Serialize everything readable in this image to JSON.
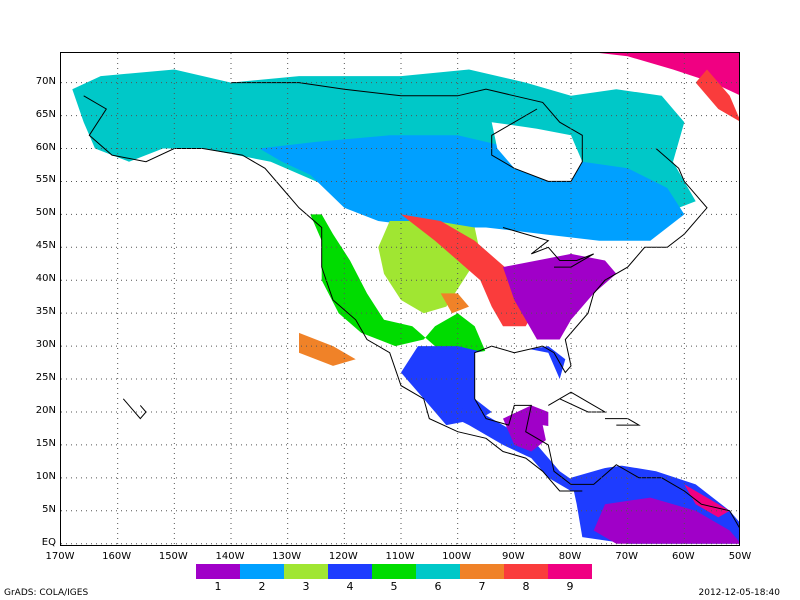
{
  "map": {
    "lat_labels": [
      "EQ",
      "5N",
      "10N",
      "15N",
      "20N",
      "25N",
      "30N",
      "35N",
      "40N",
      "45N",
      "50N",
      "55N",
      "60N",
      "65N",
      "70N"
    ],
    "lat_values": [
      0,
      5,
      10,
      15,
      20,
      25,
      30,
      35,
      40,
      45,
      50,
      55,
      60,
      65,
      70
    ],
    "lon_labels": [
      "170W",
      "160W",
      "150W",
      "140W",
      "130W",
      "120W",
      "110W",
      "100W",
      "90W",
      "80W",
      "70W",
      "60W",
      "50W"
    ],
    "lon_values": [
      -170,
      -160,
      -150,
      -140,
      -130,
      -120,
      -110,
      -100,
      -90,
      -80,
      -70,
      -60,
      -50
    ],
    "lon_range": [
      -170,
      -50
    ],
    "lat_range": [
      -0.5,
      74.5
    ],
    "grid": "dotted",
    "projection": "latlon"
  },
  "legend": {
    "labels": [
      "1",
      "2",
      "3",
      "4",
      "5",
      "6",
      "7",
      "8",
      "9"
    ],
    "colors": [
      "#a000c8",
      "#00a0ff",
      "#a0e632",
      "#1e3cff",
      "#00dc00",
      "#00c8c8",
      "#f08228",
      "#fa3c3c",
      "#f00082"
    ]
  },
  "footer": {
    "left": "GrADS: COLA/IGES",
    "right": "2012-12-05-18:40"
  }
}
